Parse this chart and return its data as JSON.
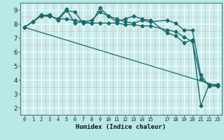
{
  "title": "",
  "xlabel": "Humidex (Indice chaleur)",
  "background_color": "#b8e8e8",
  "plot_bg_color": "#c8eeee",
  "grid_color_major": "#ffffff",
  "grid_color_minor": "#ddb8b8",
  "line_color": "#1a6b6b",
  "xlim": [
    -0.5,
    23.5
  ],
  "ylim": [
    1.5,
    9.5
  ],
  "xticks": [
    0,
    1,
    2,
    3,
    4,
    5,
    6,
    7,
    8,
    9,
    10,
    11,
    12,
    13,
    14,
    15,
    17,
    18,
    19,
    20,
    21,
    22,
    23
  ],
  "yticks": [
    2,
    3,
    4,
    5,
    6,
    7,
    8,
    9
  ],
  "series": [
    {
      "x": [
        0,
        1,
        2,
        3,
        4,
        5,
        6,
        7,
        8,
        9,
        10,
        11,
        12,
        13,
        14,
        15,
        17,
        18,
        19,
        20,
        21,
        22,
        23
      ],
      "y": [
        7.75,
        8.15,
        8.55,
        8.65,
        8.25,
        8.95,
        8.85,
        8.05,
        8.05,
        9.15,
        8.55,
        8.35,
        8.15,
        8.05,
        8.25,
        8.15,
        8.25,
        8.05,
        7.55,
        7.55,
        4.35,
        3.55,
        3.55
      ],
      "marker": "D",
      "ms": 2.5,
      "lw": 1.0
    },
    {
      "x": [
        0,
        1,
        2,
        3,
        4,
        5,
        6,
        7,
        8,
        9,
        10,
        11,
        12,
        13,
        14,
        15,
        17,
        18,
        19,
        20,
        21,
        22,
        23
      ],
      "y": [
        7.75,
        8.15,
        8.65,
        8.55,
        8.35,
        9.05,
        8.05,
        8.15,
        8.25,
        8.85,
        8.55,
        8.15,
        8.35,
        8.55,
        8.35,
        8.25,
        7.35,
        7.15,
        6.65,
        6.85,
        2.15,
        3.65,
        3.65
      ],
      "marker": "D",
      "ms": 2.5,
      "lw": 1.0
    },
    {
      "x": [
        0,
        1,
        2,
        3,
        4,
        5,
        6,
        7,
        8,
        9,
        10,
        11,
        12,
        13,
        14,
        15,
        17,
        18,
        19,
        20,
        21,
        22,
        23
      ],
      "y": [
        7.75,
        8.15,
        8.55,
        8.55,
        8.35,
        8.35,
        8.25,
        8.15,
        8.05,
        8.05,
        8.05,
        8.05,
        7.95,
        7.95,
        7.85,
        7.85,
        7.55,
        7.45,
        7.05,
        6.75,
        4.05,
        3.65,
        3.65
      ],
      "marker": "D",
      "ms": 2.5,
      "lw": 1.0
    },
    {
      "x": [
        0,
        23
      ],
      "y": [
        7.75,
        3.55
      ],
      "marker": null,
      "ms": 0,
      "lw": 0.9
    }
  ]
}
